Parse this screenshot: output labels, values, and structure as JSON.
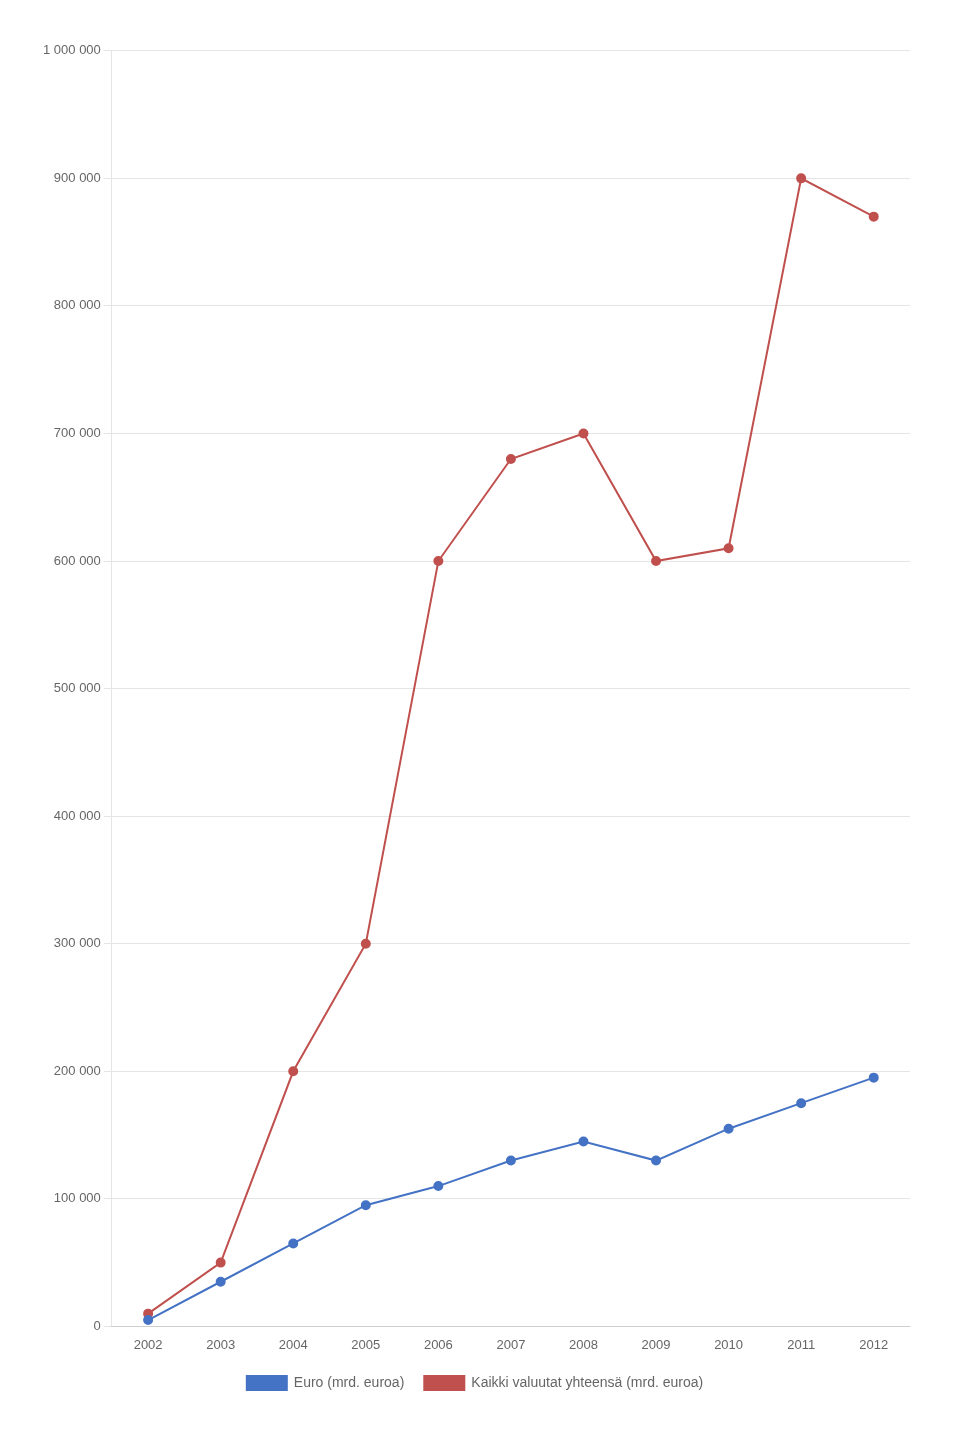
{
  "chart_data": {
    "type": "line",
    "x": [
      2002,
      2003,
      2004,
      2005,
      2006,
      2007,
      2008,
      2009,
      2010,
      2011,
      2012
    ],
    "series": [
      {
        "name": "Euro (mrd. euroa)",
        "color": "#4472C4",
        "marker": "circle",
        "values": [
          5000,
          35000,
          65000,
          95000,
          110000,
          130000,
          145000,
          130000,
          155000,
          175000,
          195000
        ]
      },
      {
        "name": "Kaikki valuutat yhteensä (mrd. euroa)",
        "color": "#C0504D",
        "marker": "circle",
        "values": [
          10000,
          50000,
          200000,
          300000,
          600000,
          680000,
          700000,
          600000,
          610000,
          900000,
          870000
        ]
      }
    ],
    "xlim": [
      2001.5,
      2012.5
    ],
    "xticks": [
      2002,
      2003,
      2004,
      2005,
      2006,
      2007,
      2008,
      2009,
      2010,
      2011,
      2012
    ],
    "ylim": [
      0,
      1000000
    ],
    "yticks": [
      0,
      {
        "value": 100000,
        "label": "100 000"
      },
      {
        "value": 200000,
        "label": "200 000"
      },
      {
        "value": 300000,
        "label": "300 000"
      },
      {
        "value": 400000,
        "label": "400 000"
      },
      {
        "value": 500000,
        "label": "500 000"
      },
      {
        "value": 600000,
        "label": "600 000"
      },
      {
        "value": 700000,
        "label": "700 000"
      },
      {
        "value": 800000,
        "label": "800 000"
      },
      {
        "value": 900000,
        "label": "900 000"
      },
      {
        "value": 1000000,
        "label": "1 000 000"
      }
    ],
    "grid": true,
    "legend": "bottom"
  }
}
